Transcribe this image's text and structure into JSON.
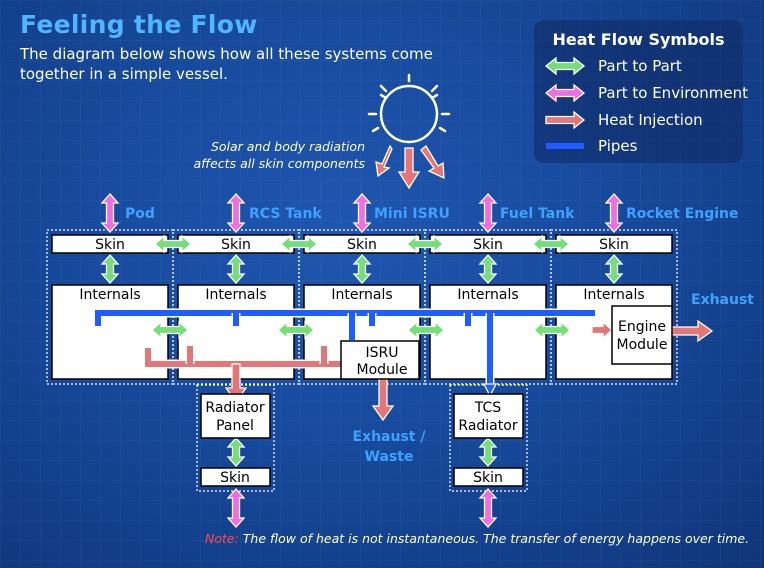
{
  "title": "Feeling the Flow",
  "intro": "The diagram below shows how all these systems come together in a simple vessel.",
  "legend": {
    "title": "Heat Flow Symbols",
    "items": [
      {
        "label": "Part to Part",
        "type": "green-double-arrow"
      },
      {
        "label": "Part to Environment",
        "type": "magenta-double-arrow"
      },
      {
        "label": "Heat Injection",
        "type": "red-arrow"
      },
      {
        "label": "Pipes",
        "type": "blue-pipe"
      }
    ]
  },
  "solar_label": "Solar and body radiation affects all skin components",
  "components": [
    {
      "name": "Pod",
      "skin": "Skin",
      "internals": "Internals"
    },
    {
      "name": "RCS Tank",
      "skin": "Skin",
      "internals": "Internals"
    },
    {
      "name": "Mini ISRU",
      "skin": "Skin",
      "internals": "Internals"
    },
    {
      "name": "Fuel Tank",
      "skin": "Skin",
      "internals": "Internals"
    },
    {
      "name": "Rocket Engine",
      "skin": "Skin",
      "internals": "Internals"
    }
  ],
  "modules": {
    "isru": "ISRU Module",
    "engine": "Engine Module"
  },
  "radiators": [
    {
      "name": "Radiator Panel",
      "skin": "Skin"
    },
    {
      "name": "TCS Radiator",
      "skin": "Skin"
    }
  ],
  "labels": {
    "exhaust": "Exhaust",
    "exhaust_waste": "Exhaust / Waste"
  },
  "note": {
    "lead": "Note:",
    "text": "The flow of heat is not instantaneous. The transfer of energy happens over time."
  },
  "colors": {
    "background": "#174a9c",
    "title": "#4fb6ff",
    "component_label": "#3ea2ff",
    "part_to_part": "#77dd77",
    "part_to_environment": "#ee6ee6",
    "heat_injection": "#e37676",
    "pipe": "#1f5dff",
    "note_lead": "#ff4a4a"
  }
}
